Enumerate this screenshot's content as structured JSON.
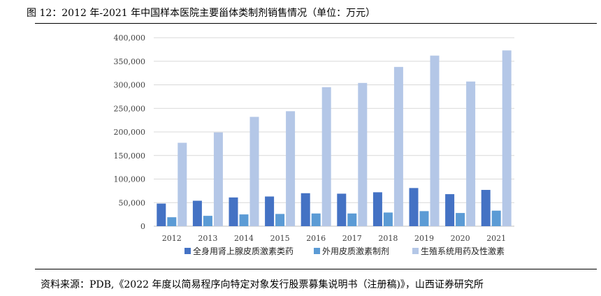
{
  "figure": {
    "title": "图 12：2012 年-2021 年中国样本医院主要甾体类制剂销售情况（单位：万元）",
    "source": "资料来源：PDB,《2022 年度以简易程序向特定对象发行股票募集说明书（注册稿)》，山西证券研究所"
  },
  "chart_data": {
    "type": "bar",
    "title": "",
    "xlabel": "",
    "ylabel": "",
    "categories": [
      "2012",
      "2013",
      "2014",
      "2015",
      "2016",
      "2017",
      "2018",
      "2019",
      "2020",
      "2021"
    ],
    "ylim": [
      0,
      400000
    ],
    "yticks": [
      0,
      50000,
      100000,
      150000,
      200000,
      250000,
      300000,
      350000,
      400000
    ],
    "ytick_labels": [
      "0",
      "50,000",
      "100,000",
      "150,000",
      "200,000",
      "250,000",
      "300,000",
      "350,000",
      "400,000"
    ],
    "grid": true,
    "legend_position": "bottom",
    "series": [
      {
        "name": "全身用肾上腺皮质激素类药",
        "color": "#4472C4",
        "values": [
          48000,
          54000,
          61000,
          63000,
          70000,
          69000,
          72000,
          81000,
          68000,
          77000
        ]
      },
      {
        "name": "外用皮质激素制剂",
        "color": "#5B9BD5",
        "values": [
          19000,
          22000,
          25000,
          26000,
          27000,
          27000,
          29000,
          32000,
          28000,
          33000
        ]
      },
      {
        "name": "生殖系统用药及性激素",
        "color": "#B4C7E7",
        "values": [
          177000,
          199000,
          232000,
          244000,
          295000,
          304000,
          338000,
          362000,
          307000,
          373000
        ]
      }
    ]
  }
}
